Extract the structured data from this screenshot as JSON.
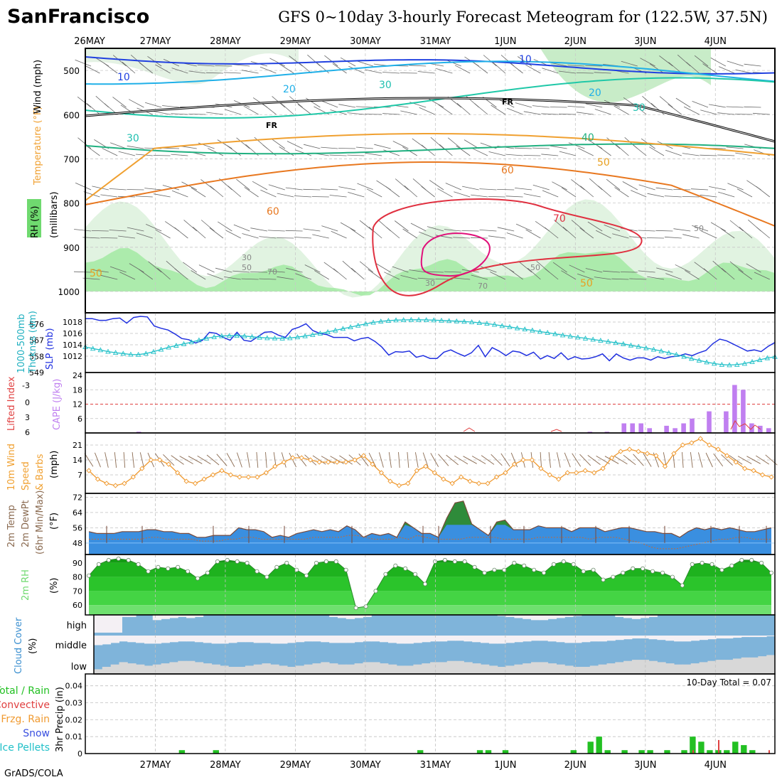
{
  "header": {
    "station": "SanFrancisco",
    "title": "GFS 0~10day 3-hourly Forecast Meteogram for (122.5W, 37.5N)",
    "credit": "GrADS/COLA"
  },
  "colors": {
    "rh": "#6fd96f",
    "blue": "#3a50e0",
    "cyan": "#20c0c8",
    "orange": "#f0a030",
    "purple": "#c080f0",
    "red": "#e04040",
    "brown": "#8a6a50",
    "green2": "#22bb22",
    "cloudblue": "#7fb4da",
    "cloudgray": "#d8d8d8",
    "cloudwhite": "#f4f0f4"
  },
  "chart_data": [
    {
      "panel": "upper_air",
      "type": "contour",
      "labels": {
        "y_temp": "Temperature (°F)",
        "y_wind": "Wind (mph)",
        "y_rh": "RH (%)",
        "y_press": "(millibars)"
      },
      "x_labels_top": [
        "26MAY",
        "27MAY",
        "28MAY",
        "29MAY",
        "30MAY",
        "31MAY",
        "1JUN",
        "2JUN",
        "3JUN",
        "4JUN"
      ],
      "yticks": [
        "500",
        "600",
        "700",
        "800",
        "900",
        "1000"
      ],
      "contour_labels": {
        "wind": [
          "10",
          "20",
          "30",
          "30",
          "20",
          "10",
          "20",
          "30",
          "40",
          "50"
        ],
        "temp": [
          "60",
          "70",
          "60",
          "50",
          "50",
          "FR",
          "FR"
        ],
        "rh": [
          "30",
          "50",
          "70",
          "30",
          "50",
          "70",
          "50"
        ]
      }
    },
    {
      "panel": "thickness_slp",
      "type": "line",
      "labels": {
        "left": "1000-500mb Thcknss (dm)",
        "right": "SLP (mb)"
      },
      "left_ticks": [
        "576",
        "567",
        "558",
        "549"
      ],
      "right_ticks": [
        "1018",
        "1016",
        "1014",
        "1012"
      ],
      "series": [
        {
          "name": "SLP (mb)",
          "values": [
            1018.6,
            1018.6,
            1018.3,
            1018.3,
            1018.6,
            1018.7,
            1017.8,
            1018.8,
            1019.0,
            1018.9,
            1017.3,
            1016.9,
            1016.6,
            1015.9,
            1015.1,
            1014.9,
            1014.3,
            1014.8,
            1016.2,
            1016.0,
            1015.3,
            1014.8,
            1016.2,
            1014.8,
            1014.6,
            1015.4,
            1016.2,
            1016.3,
            1015.7,
            1015.3,
            1016.7,
            1017.1,
            1017.7,
            1016.5,
            1016.0,
            1015.8,
            1015.3,
            1015.3,
            1015.3,
            1014.7,
            1015.1,
            1015.3,
            1014.6,
            1013.6,
            1012.2,
            1012.8,
            1012.7,
            1012.9,
            1011.8,
            1012.1,
            1011.6,
            1011.6,
            1012.7,
            1013.1,
            1012.5,
            1012.0,
            1012.6,
            1013.9,
            1011.9,
            1013.5,
            1012.9,
            1012.1,
            1012.9,
            1012.7,
            1012.1,
            1012.7,
            1011.5,
            1012.1,
            1011.6,
            1012.6,
            1011.4,
            1011.9,
            1011.5,
            1011.6,
            1011.9,
            1012.4,
            1011.2,
            1012.4,
            1011.7,
            1011.3,
            1011.7,
            1011.7,
            1011.3,
            1011.9,
            1011.6,
            1011.9,
            1012.0,
            1012.4,
            1012.1,
            1012.6,
            1013.0,
            1014.2,
            1015.0,
            1014.7,
            1014.1,
            1013.5,
            1012.9,
            1013.1,
            1012.8,
            1013.7,
            1014.4
          ],
          "color": "#2030e0"
        },
        {
          "name": "1000-500mb Thickness (dm)",
          "values": [
            563.3,
            562.4,
            561.6,
            560.7,
            560.1,
            559.6,
            559.1,
            559.0,
            559.6,
            560.6,
            561.9,
            563.1,
            564.1,
            565.0,
            566.0,
            567.1,
            568.1,
            568.9,
            569.4,
            569.6,
            569.6,
            569.4,
            569.0,
            568.6,
            568.3,
            568.2,
            568.1,
            568.3,
            568.8,
            569.4,
            570.1,
            570.9,
            571.7,
            572.6,
            573.5,
            574.4,
            575.3,
            576.2,
            577.0,
            577.6,
            578.0,
            578.3,
            578.4,
            578.5,
            578.5,
            578.4,
            578.3,
            578.1,
            577.9,
            577.7,
            577.5,
            577.2,
            576.8,
            576.4,
            575.8,
            575.1,
            574.5,
            573.8,
            573.2,
            572.6,
            571.9,
            571.3,
            570.6,
            569.9,
            569.3,
            568.7,
            568.1,
            567.5,
            566.9,
            566.3,
            565.6,
            565.0,
            564.2,
            563.5,
            562.7,
            561.9,
            561.0,
            560.0,
            559.0,
            557.9,
            556.8,
            555.8,
            554.8,
            554.0,
            553.4,
            553.2,
            553.4,
            554.0,
            555.0,
            556.1,
            557.1,
            557.8
          ],
          "color": "#20c0c8"
        }
      ]
    },
    {
      "panel": "stability",
      "type": "bar",
      "labels": {
        "left": "Lifted Index",
        "right": "CAPE (J/kg)"
      },
      "left_ticks": [
        "-3",
        "0",
        "3",
        "6"
      ],
      "right_ticks": [
        "24",
        "18",
        "12",
        "6"
      ],
      "series": [
        {
          "name": "CAPE",
          "indices": [
            6,
            59,
            61,
            63,
            64,
            65,
            66,
            68,
            69,
            70,
            71,
            73,
            75,
            76,
            77,
            78,
            79,
            80
          ],
          "values": [
            0.5,
            0.5,
            0.5,
            4,
            4,
            4,
            2,
            3,
            2,
            4,
            6,
            9,
            9,
            20,
            18,
            4,
            3,
            2
          ]
        }
      ]
    },
    {
      "panel": "wind10m",
      "type": "line",
      "labels": {
        "left": "10m Wind Speed & Barbs (mph)"
      },
      "ticks": [
        "21",
        "14",
        "7"
      ],
      "series": [
        {
          "name": "10m Wind Speed",
          "values": [
            9,
            5,
            3,
            2,
            3,
            6,
            10,
            14,
            14,
            12,
            8,
            4,
            3,
            5,
            7,
            9,
            7,
            6,
            6,
            6,
            8,
            11,
            13,
            15,
            15,
            14,
            13,
            13,
            13,
            13,
            14,
            16,
            12,
            8,
            4,
            2,
            3,
            9,
            11,
            8,
            5,
            3,
            6,
            4,
            3,
            3,
            6,
            8,
            12,
            14,
            14,
            10,
            7,
            5,
            8,
            8,
            9,
            8,
            10,
            15,
            18,
            19,
            18,
            17,
            16,
            11,
            17,
            21,
            22,
            24,
            21,
            19,
            16,
            13,
            10,
            9,
            7,
            6
          ]
        }
      ]
    },
    {
      "panel": "temp2m",
      "type": "area",
      "labels": {
        "left": "2m Temp 2m DewPt (6hr Min/Max) (°F)"
      },
      "ticks": [
        "72",
        "64",
        "56",
        "48"
      ],
      "series": [
        {
          "name": "2m Temp",
          "values": [
            54,
            53,
            53,
            53,
            54,
            54,
            54,
            55,
            55,
            54,
            54,
            53,
            53,
            51,
            51,
            52,
            52,
            52,
            56,
            55,
            55,
            54,
            51,
            52,
            51,
            53,
            54,
            55,
            54,
            55,
            54,
            57,
            55,
            51,
            53,
            52,
            53,
            51,
            59,
            56,
            53,
            53,
            51,
            61,
            69,
            70,
            58,
            55,
            52,
            59,
            60,
            55,
            55,
            55,
            57,
            56,
            56,
            56,
            54,
            56,
            56,
            56,
            54,
            55,
            56,
            56,
            55,
            54,
            54,
            53,
            53,
            51,
            54,
            56,
            55,
            56,
            55,
            56,
            55,
            54,
            54,
            55,
            56
          ]
        },
        {
          "name": "2m DewPt",
          "values": [
            50,
            50,
            50,
            50,
            50,
            50,
            50,
            51,
            51,
            50,
            50,
            50,
            50,
            49,
            49,
            49,
            50,
            50,
            51,
            51,
            50,
            50,
            50,
            50,
            50,
            50,
            51,
            51,
            51,
            51,
            52,
            52,
            51,
            50,
            50,
            50,
            51,
            50,
            52,
            51,
            50,
            50,
            50,
            50,
            51,
            51,
            51,
            51,
            50,
            50,
            50,
            50,
            51,
            51,
            51,
            51,
            51,
            51,
            50,
            51,
            51,
            51,
            50,
            49,
            48,
            46,
            45,
            45,
            45,
            46,
            47,
            48,
            49,
            50,
            50,
            51,
            51,
            50,
            50,
            50
          ]
        }
      ]
    },
    {
      "panel": "rh2m",
      "type": "area",
      "labels": {
        "left": "2m RH (%)"
      },
      "ticks": [
        "90",
        "80",
        "70",
        "60"
      ],
      "series": [
        {
          "name": "2m RH",
          "values": [
            81,
            89,
            92,
            93,
            92,
            89,
            84,
            87,
            86,
            87,
            84,
            79,
            83,
            91,
            92,
            91,
            90,
            84,
            80,
            87,
            90,
            85,
            81,
            90,
            91,
            91,
            85,
            58,
            59,
            70,
            82,
            88,
            86,
            82,
            75,
            91,
            92,
            91,
            91,
            87,
            83,
            85,
            85,
            90,
            88,
            85,
            83,
            89,
            91,
            89,
            84,
            85,
            78,
            80,
            83,
            86,
            86,
            84,
            83,
            80,
            74,
            89,
            90,
            89,
            85,
            88,
            92,
            92,
            90,
            83
          ]
        }
      ]
    },
    {
      "panel": "cloud",
      "type": "area",
      "labels": {
        "left": "Cloud Cover (%)"
      },
      "level_labels": [
        "high",
        "middle",
        "low"
      ],
      "series": [
        {
          "name": "low",
          "values": [
            0.2,
            0.3,
            0.4,
            0.5,
            0.45,
            0.4,
            0.35,
            0.4,
            0.45,
            0.5,
            0.55,
            0.55,
            0.5,
            0.45,
            0.4,
            0.35,
            0.3,
            0.3,
            0.35,
            0.4,
            0.45,
            0.4,
            0.35,
            0.3,
            0.35,
            0.4,
            0.45,
            0.5,
            0.45,
            0.4,
            0.4,
            0.45,
            0.5,
            0.5,
            0.45,
            0.4,
            0.35,
            0.35,
            0.4,
            0.45,
            0.5,
            0.5,
            0.55,
            0.55,
            0.5,
            0.45,
            0.4,
            0.35,
            0.3,
            0.35,
            0.4,
            0.45,
            0.5,
            0.5,
            0.45,
            0.4,
            0.35,
            0.3,
            0.3,
            0.35,
            0.4,
            0.45,
            0.5,
            0.55,
            0.6,
            0.6,
            0.55,
            0.5,
            0.45,
            0.4,
            0.4,
            0.45,
            0.5,
            0.55,
            0.6,
            0.6,
            0.65,
            0.7,
            0.7,
            0.75,
            0.8
          ]
        },
        {
          "name": "middle",
          "values": [
            0.35,
            0.4,
            0.5,
            0.6,
            0.55,
            0.5,
            0.45,
            0.45,
            0.5,
            0.55,
            0.6,
            0.6,
            0.55,
            0.5,
            0.45,
            0.45,
            0.5,
            0.55,
            0.55,
            0.5,
            0.5,
            0.45,
            0.45,
            0.5,
            0.55,
            0.6,
            0.6,
            0.55,
            0.5,
            0.5,
            0.5,
            0.55,
            0.6,
            0.6,
            0.55,
            0.5,
            0.45,
            0.45,
            0.5,
            0.55,
            0.6,
            0.6,
            0.65,
            0.65,
            0.6,
            0.55,
            0.5,
            0.45,
            0.45,
            0.5,
            0.55,
            0.6,
            0.65,
            0.65,
            0.6,
            0.55,
            0.5,
            0.5,
            0.55,
            0.6,
            0.6,
            0.65,
            0.7,
            0.75,
            0.8,
            0.8,
            0.75,
            0.7,
            0.65,
            0.6,
            0.6,
            0.65,
            0.7,
            0.75,
            0.8,
            0.8,
            0.85,
            0.9,
            0.9,
            0.9,
            0.95
          ]
        },
        {
          "name": "high",
          "values": [
            1,
            1,
            1,
            0.9,
            0.9,
            1,
            1,
            0.75,
            0.8,
            0.85,
            0.9,
            0.85,
            0.9,
            1,
            1,
            1,
            1,
            1,
            1,
            1,
            1,
            1,
            1,
            1,
            1,
            1,
            1,
            1,
            0.9,
            0.85,
            0.8,
            0.85,
            0.9,
            1,
            1,
            1,
            1,
            1,
            1,
            1,
            1,
            1,
            1,
            1,
            1,
            1,
            1,
            1,
            0.95,
            0.9,
            0.85,
            0.8,
            0.75,
            0.75,
            0.8,
            0.85,
            0.9,
            0.95,
            1,
            1,
            1,
            1,
            0.9,
            0.85,
            0.8,
            0.85,
            0.9,
            1,
            1,
            1,
            1,
            1,
            1,
            1,
            1,
            1,
            1,
            1,
            1,
            1,
            1
          ]
        }
      ]
    },
    {
      "panel": "precip",
      "type": "bar",
      "labels": {
        "left": "3hr Precip (in)",
        "legend": [
          "Total / Rain",
          "Convective",
          "Frzg. Rain",
          "Snow",
          "Ice Pellets"
        ],
        "total": "10-Day Total = 0.07"
      },
      "ticks": [
        "0.04",
        "0.03",
        "0.02",
        "0.01",
        "0"
      ],
      "x_labels_bottom": [
        "27MAY",
        "28MAY",
        "29MAY",
        "30MAY",
        "31MAY",
        "1JUN",
        "2JUN",
        "3JUN",
        "4JUN"
      ],
      "series": [
        {
          "name": "Total / Rain",
          "indices": [
            11,
            15,
            39,
            46,
            47,
            49,
            57,
            59,
            60,
            61,
            63,
            65,
            66,
            68,
            70,
            71,
            72,
            73,
            74,
            75,
            76,
            77,
            78
          ],
          "values": [
            0.002,
            0.002,
            0.002,
            0.002,
            0.002,
            0.002,
            0.002,
            0.007,
            0.01,
            0.002,
            0.002,
            0.002,
            0.002,
            0.002,
            0.002,
            0.01,
            0.007,
            0.002,
            0.002,
            0.002,
            0.007,
            0.005,
            0.002
          ]
        }
      ]
    }
  ]
}
